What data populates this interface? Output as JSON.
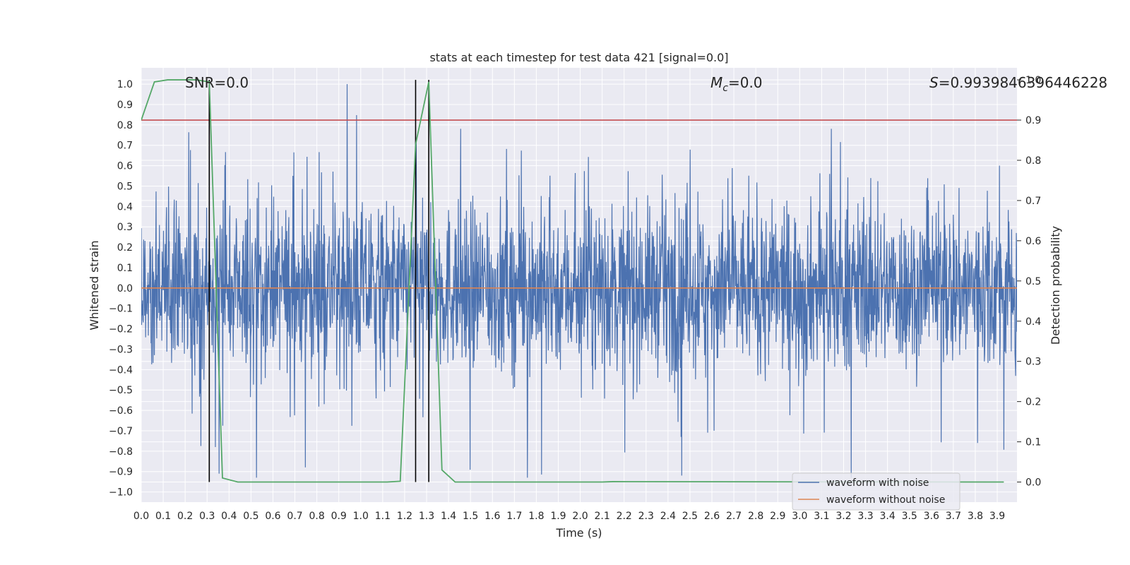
{
  "chart_data": {
    "type": "line",
    "title": "stats at each timestep for test data 421 [signal=0.0]",
    "xlabel": "Time (s)",
    "ylabel": "Whitened strain",
    "ylabel_right": "Detection probability",
    "xlim": [
      0.0,
      3.99
    ],
    "ylim": [
      -1.05,
      1.08
    ],
    "ylim_right": [
      -0.05,
      1.03
    ],
    "x_ticks": [
      "0.0",
      "0.1",
      "0.2",
      "0.3",
      "0.4",
      "0.5",
      "0.6",
      "0.7",
      "0.8",
      "0.9",
      "1.0",
      "1.1",
      "1.2",
      "1.3",
      "1.4",
      "1.5",
      "1.6",
      "1.7",
      "1.8",
      "1.9",
      "2.0",
      "2.1",
      "2.2",
      "2.3",
      "2.4",
      "2.5",
      "2.6",
      "2.7",
      "2.8",
      "2.9",
      "3.0",
      "3.1",
      "3.2",
      "3.3",
      "3.4",
      "3.5",
      "3.6",
      "3.7",
      "3.8",
      "3.9"
    ],
    "y_ticks": [
      "1.0",
      "0.9",
      "0.8",
      "0.7",
      "0.6",
      "0.5",
      "0.4",
      "0.3",
      "0.2",
      "0.1",
      "0.0",
      "−0.1",
      "−0.2",
      "−0.3",
      "−0.4",
      "−0.5",
      "−0.6",
      "−0.7",
      "−0.8",
      "−0.9",
      "−1.0"
    ],
    "y_ticks_right": [
      "1.0",
      "0.9",
      "0.8",
      "0.7",
      "0.6",
      "0.5",
      "0.4",
      "0.3",
      "0.2",
      "0.1",
      "0.0"
    ],
    "annotations": {
      "snr": "SNR=0.0",
      "mc_symbol": "M",
      "mc_sub": "c",
      "mc_value": "=0.0",
      "s_symbol": "S",
      "s_value": "=0.9939846396446228"
    },
    "legend": {
      "position": "lower-right",
      "entries": [
        "waveform with noise",
        "waveform without noise"
      ]
    },
    "series": [
      {
        "name": "waveform with noise",
        "color": "#4c72b0",
        "note": "noise, approx. amplitude 0.3 with spikes to 1.0"
      },
      {
        "name": "waveform without noise",
        "color": "#dd8452",
        "value": 0.0
      },
      {
        "name": "detection probability",
        "color": "#55a868",
        "axis": "right",
        "x": [
          0.0,
          0.06,
          0.12,
          0.19,
          0.25,
          0.31,
          0.37,
          0.44,
          0.5,
          1.12,
          1.18,
          1.25,
          1.31,
          1.37,
          1.43,
          1.5,
          2.1,
          2.15,
          3.93
        ],
        "values": [
          0.9,
          0.995,
          1.0,
          1.0,
          1.0,
          0.995,
          0.01,
          0.0,
          0.0,
          0.0,
          0.002,
          0.84,
          0.995,
          0.03,
          0.0,
          0.0,
          0.0,
          0.001,
          0.0
        ]
      },
      {
        "name": "threshold",
        "color": "#c44e52",
        "axis": "right",
        "value": 0.9
      }
    ],
    "vertical_lines": [
      0.31,
      1.25,
      1.31
    ]
  }
}
